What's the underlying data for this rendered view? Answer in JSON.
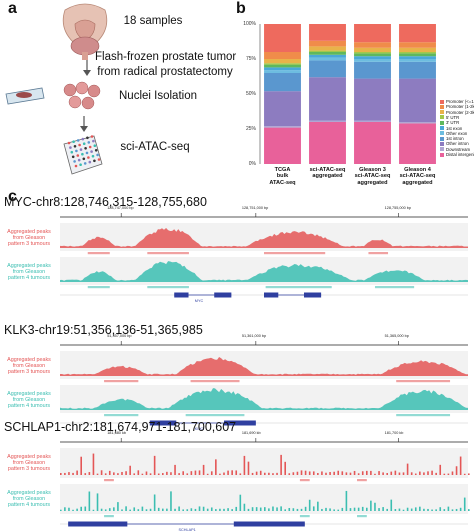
{
  "panels": {
    "a": "a",
    "b": "b",
    "c": "c"
  },
  "schematic": {
    "samples": "18 samples",
    "tissue_line1": "Flash-frozen prostate tumor",
    "tissue_line2": "from radical prostatectomy",
    "nuclei": "Nuclei Isolation",
    "assay": "sci-ATAC-seq"
  },
  "colors": {
    "gleason3": "#e45656",
    "gleason4": "#3bbeb1",
    "gene": "#2f3fa0"
  },
  "chart_data": {
    "type": "bar",
    "stacked": true,
    "percent_axis": true,
    "categories": [
      "TCGA bulk ATAC-seq",
      "sci-ATAC-seq aggregated",
      "Gleason 3 sci-ATAC-seq aggregated",
      "Gleason 4 sci-ATAC-seq aggregated"
    ],
    "category_labels": [
      [
        "TCGA",
        "bulk",
        "ATAC-seq"
      ],
      [
        "sci-ATAC-seq",
        "aggregated"
      ],
      [
        "Gleason 3",
        "sci-ATAC-seq",
        "aggregated"
      ],
      [
        "Gleason 4",
        "sci-ATAC-seq",
        "aggregated"
      ]
    ],
    "y_ticks": [
      "0%",
      "25%",
      "50%",
      "75%",
      "100%"
    ],
    "ylim": [
      0,
      100
    ],
    "series": [
      {
        "name": "Distal intergenic",
        "color": "#e8619a",
        "values": [
          26,
          30,
          30,
          29
        ]
      },
      {
        "name": "Downstream",
        "color": "#b0a6d3",
        "values": [
          1,
          1,
          1,
          1
        ]
      },
      {
        "name": "Other intron",
        "color": "#8d7cc0",
        "values": [
          25,
          31,
          30,
          31
        ]
      },
      {
        "name": "1st intron",
        "color": "#5a97cf",
        "values": [
          13,
          12,
          12,
          12
        ]
      },
      {
        "name": "Other exon",
        "color": "#6dbde0",
        "values": [
          2,
          2,
          2,
          2
        ]
      },
      {
        "name": "1st exon",
        "color": "#4aa8d8",
        "values": [
          2,
          2,
          2,
          2
        ]
      },
      {
        "name": "3' UTR",
        "color": "#5fb85c",
        "values": [
          2,
          2,
          2,
          2
        ]
      },
      {
        "name": "5' UTR",
        "color": "#a3c84a",
        "values": [
          1,
          1,
          1,
          1
        ]
      },
      {
        "name": "Promoter (2-3kb)",
        "color": "#e8b34a",
        "values": [
          3,
          3,
          3,
          3
        ]
      },
      {
        "name": "Promoter (1-2kb)",
        "color": "#f08c4a",
        "values": [
          5,
          4,
          4,
          4
        ]
      },
      {
        "name": "Promoter (<=1kb)",
        "color": "#ee6a5e",
        "values": [
          20,
          12,
          13,
          13
        ]
      }
    ],
    "legend_labels": [
      "Promoter (<=1kb)",
      "Promoter (1-2kb)",
      "Promoter (2-3kb)",
      "5' UTR",
      "3' UTR",
      "1st exon",
      "Other exon",
      "1st intron",
      "Other intron",
      "Downstream",
      "Distal intergenic"
    ]
  },
  "tracks": [
    {
      "region": "MYC-chr8:128,746,315-128,755,680",
      "coords": [
        "128,747,000 bp",
        "128,751,000 bp",
        "128,755,000 bp"
      ],
      "label_g3": "Aggregated peaks from Gleason pattern 3 tumours",
      "label_g4": "Aggregated peaks from Gleason pattern 4 tumours",
      "gene": "MYC"
    },
    {
      "region": "KLK3-chr19:51,356,136-51,365,985",
      "coords": [
        "51,357,000 bp",
        "51,361,000 bp",
        "51,365,000 bp"
      ],
      "label_g3": "Aggregated peaks from Gleason pattern 3 tumours",
      "label_g4": "Aggregated peaks from Gleason pattern 4 tumours",
      "gene": "KLK3"
    },
    {
      "region": "SCHLAP1-chr2:181,674,971-181,700,607",
      "coords": [
        "181,680 kb",
        "181,690 kb",
        "181,700 kb"
      ],
      "label_g3": "Aggregated peaks from Gleason pattern 3 tumours",
      "label_g4": "Aggregated peaks from Gleason pattern 4 tumours",
      "gene": "SCHLAP1"
    }
  ]
}
